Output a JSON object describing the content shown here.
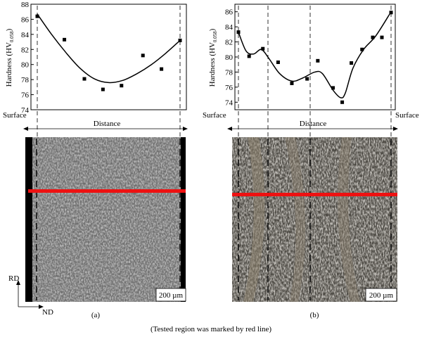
{
  "chart_data": [
    {
      "type": "scatter",
      "panel_label": "(a)",
      "ylabel_main": "Hardness (HV",
      "ylabel_sub": "0.058",
      "ylabel_close": ")",
      "xlabel": "Distance",
      "left_label": "Surface",
      "ylim": [
        74,
        88
      ],
      "yticks": [
        74,
        76,
        78,
        80,
        82,
        84,
        86,
        88
      ],
      "x": [
        0.0,
        0.19,
        0.33,
        0.46,
        0.59,
        0.74,
        0.87,
        1.0
      ],
      "y": [
        86.4,
        83.3,
        78.1,
        76.7,
        77.2,
        81.2,
        79.4,
        83.2
      ],
      "fit_curve": {
        "x": [
          0.0,
          0.1,
          0.2,
          0.3,
          0.4,
          0.5,
          0.6,
          0.7,
          0.8,
          0.9,
          1.0
        ],
        "y": [
          86.7,
          84.0,
          81.6,
          79.5,
          78.1,
          77.6,
          77.9,
          78.8,
          80.0,
          81.5,
          83.2
        ]
      },
      "micrograph": {
        "scale_bar": "200 µm"
      }
    },
    {
      "type": "scatter",
      "panel_label": "(b)",
      "ylabel_main": "Hardness (HV",
      "ylabel_sub": "0.058",
      "ylabel_close": ")",
      "xlabel": "Distance",
      "left_label": "Surface",
      "right_label": "Surface",
      "ylim": [
        73,
        87
      ],
      "yticks": [
        74,
        76,
        78,
        80,
        82,
        84,
        86
      ],
      "x": [
        0.0,
        0.07,
        0.16,
        0.26,
        0.35,
        0.45,
        0.52,
        0.62,
        0.68,
        0.74,
        0.81,
        0.88,
        0.94,
        1.0
      ],
      "y": [
        83.3,
        80.1,
        81.1,
        79.3,
        76.5,
        77.1,
        79.5,
        75.9,
        74.0,
        79.2,
        81.0,
        82.6,
        82.6,
        85.9
      ],
      "fit_curve": {
        "x": [
          0.0,
          0.05,
          0.1,
          0.15,
          0.2,
          0.27,
          0.35,
          0.42,
          0.5,
          0.55,
          0.62,
          0.67,
          0.7,
          0.75,
          0.82,
          0.9,
          1.0
        ],
        "y": [
          83.3,
          80.8,
          80.4,
          81.0,
          79.8,
          77.8,
          76.8,
          77.2,
          78.0,
          77.8,
          75.6,
          74.6,
          75.2,
          78.5,
          81.0,
          82.8,
          86.0
        ]
      },
      "micrograph": {
        "scale_bar": "200 µm"
      }
    }
  ],
  "axes_indicator": {
    "rd": "RD",
    "nd": "ND"
  },
  "caption": "(Tested region was marked by red line)",
  "colors": {
    "red_line": "#ee1111",
    "micro_a": "#6e6e6e",
    "micro_b": "#4d4a44"
  }
}
